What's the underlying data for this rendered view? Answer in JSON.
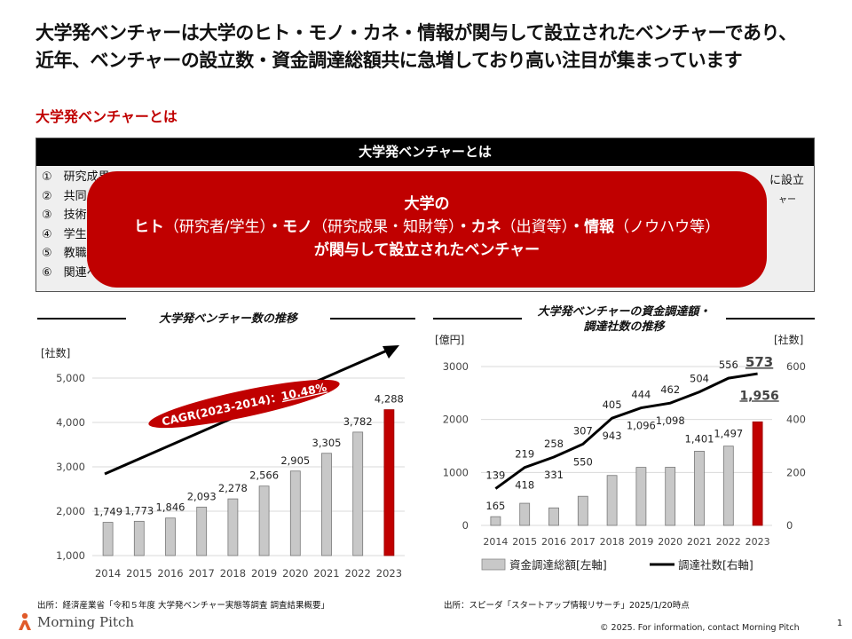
{
  "page": {
    "title_line1": "大学発ベンチャーは大学のヒト・モノ・カネ・情報が関与して設立されたベンチャーであり、",
    "title_line2": "近年、ベンチャーの設立数・資金調達総額共に急増しており高い注目が集まっています",
    "section_title": "大学発ベンチャーとは",
    "page_number": "1",
    "copyright": "© 2025. For information, contact Morning Pitch",
    "logo_text": "Morning Pitch"
  },
  "definition": {
    "header": "大学発ベンチャーとは",
    "items": [
      {
        "text": "①　研究成果"
      },
      {
        "text": "②　共同"
      },
      {
        "text": "③　技術"
      },
      {
        "text": "④　学生"
      },
      {
        "text": "⑤　教職"
      },
      {
        "text": "⑥　関連ベ"
      }
    ],
    "right_fragments": [
      "に設立",
      "ャー"
    ],
    "overlay": {
      "line1": "大学の",
      "hito": "ヒト",
      "hito_note": "（研究者/学生）",
      "mono": "・モノ",
      "mono_note": "（研究成果・知財等）",
      "kane": "・カネ",
      "kane_note": "（出資等）",
      "joho": "・情報",
      "joho_note": "（ノウハウ等）",
      "line3": "が関与して設立されたベンチャー"
    }
  },
  "chart_left": {
    "title": "大学発ベンチャー数の推移",
    "source": "出所：経済産業省「令和５年度 大学発ベンチャー実態等調査 調査結果概要」"
  },
  "chart_right": {
    "title_line1": "大学発ベンチャーの資金調達額・",
    "title_line2": "調達社数の推移",
    "source": "出所：スピーダ「スタートアップ情報リサーチ」2025/1/20時点"
  },
  "chart_data": [
    {
      "type": "bar",
      "title": "大学発ベンチャー数の推移",
      "ylabel": "[社数]",
      "categories": [
        "2014",
        "2015",
        "2016",
        "2017",
        "2018",
        "2019",
        "2020",
        "2021",
        "2022",
        "2023"
      ],
      "values": [
        1749,
        1773,
        1846,
        2093,
        2278,
        2566,
        2905,
        3305,
        3782,
        4288
      ],
      "value_labels": [
        "1,749",
        "1,773",
        "1,846",
        "2,093",
        "2,278",
        "2,566",
        "2,905",
        "3,305",
        "3,782",
        "4,288"
      ],
      "ylim": [
        1000,
        5000
      ],
      "yticks": [
        1000,
        2000,
        3000,
        4000,
        5000
      ],
      "ytick_labels": [
        "1,000",
        "2,000",
        "3,000",
        "4,000",
        "5,000"
      ],
      "bar_color": "#c8c8c8",
      "highlight_color": "#c00000",
      "annotation": {
        "prefix": "CAGR(2023-2014)：",
        "value": "10.48%"
      },
      "grid": true
    },
    {
      "type": "bar+line",
      "title": "大学発ベンチャーの資金調達額・調達社数の推移",
      "ylabel_left": "[億円]",
      "ylabel_right": "[社数]",
      "categories": [
        "2014",
        "2015",
        "2016",
        "2017",
        "2018",
        "2019",
        "2020",
        "2021",
        "2022",
        "2023"
      ],
      "series": [
        {
          "name": "資金調達総額[左軸]",
          "kind": "bar",
          "axis": "left",
          "values": [
            165,
            418,
            331,
            550,
            943,
            1096,
            1098,
            1401,
            1497,
            1956
          ],
          "value_labels": [
            "165",
            "418",
            "331",
            "550",
            "943",
            "1,096",
            "1,098",
            "1,401",
            "1,497",
            "1,956"
          ]
        },
        {
          "name": "調達社数[右軸]",
          "kind": "line",
          "axis": "right",
          "values": [
            139,
            219,
            258,
            307,
            405,
            444,
            462,
            504,
            556,
            573
          ],
          "value_labels": [
            "139",
            "219",
            "258",
            "307",
            "405",
            "444",
            "462",
            "504",
            "556",
            "573"
          ]
        }
      ],
      "ylim_left": [
        0,
        3000
      ],
      "yticks_left": [
        "0",
        "1000",
        "2000",
        "3000"
      ],
      "ylim_right": [
        0,
        600
      ],
      "yticks_right": [
        "0",
        "200",
        "400",
        "600"
      ],
      "bar_color": "#c8c8c8",
      "highlight_color": "#c00000",
      "grid": true,
      "legend": "bottom"
    }
  ]
}
